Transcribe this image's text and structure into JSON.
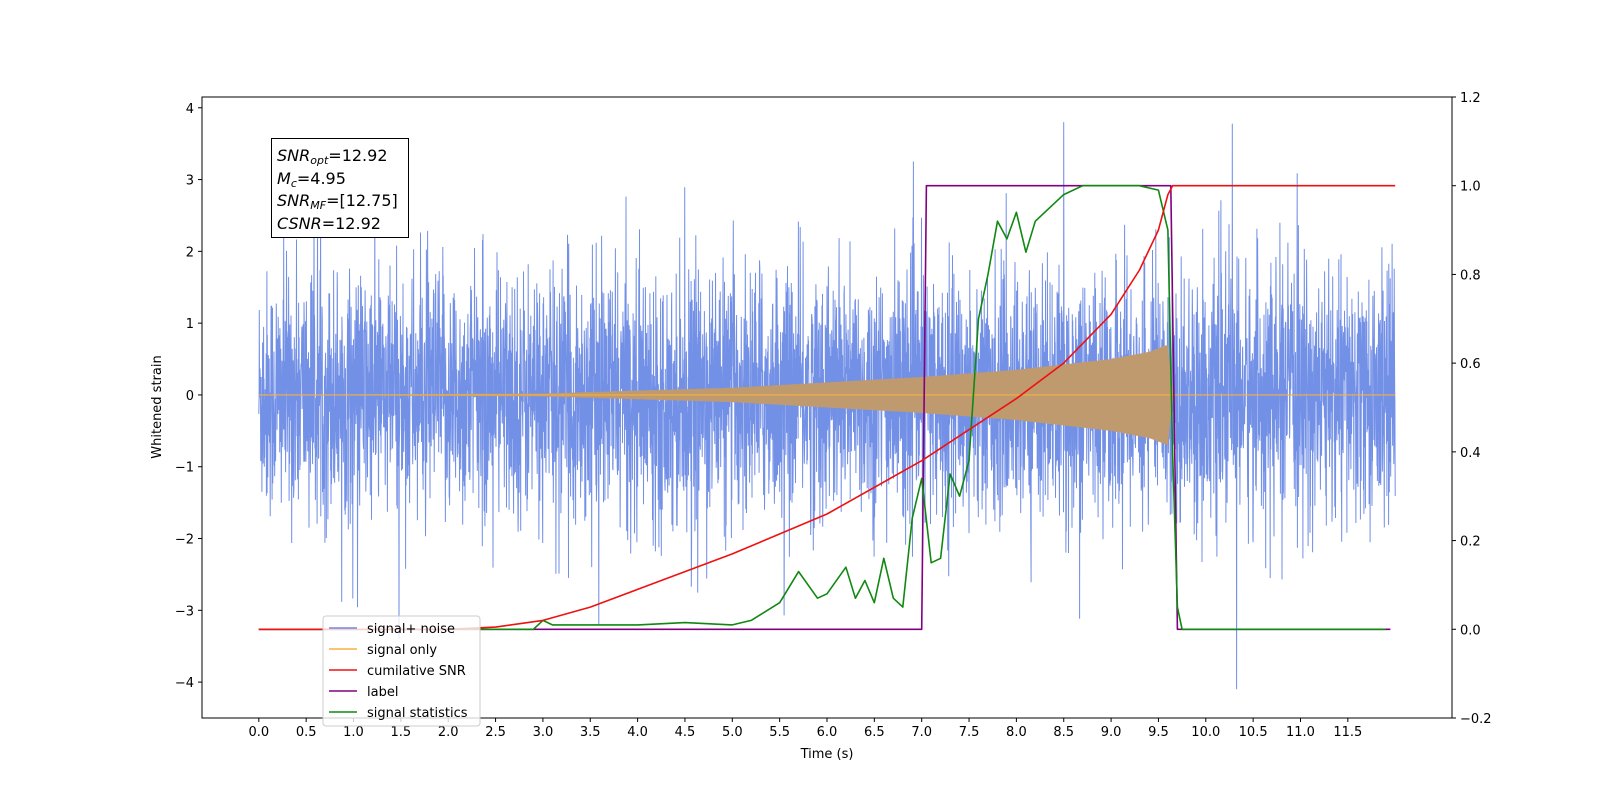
{
  "infobox": {
    "snr_opt": {
      "symbol": "SNR",
      "sub": "opt",
      "value": "=12.92"
    },
    "mc": {
      "symbol": "M",
      "sub": "c",
      "value": "=4.95"
    },
    "snr_mf": {
      "symbol": "SNR",
      "sub": "MF",
      "value": "=[12.75]"
    },
    "csnr": {
      "symbol": "CSNR",
      "value": "=12.92"
    }
  },
  "chart_data": {
    "type": "line",
    "xlabel": "Time (s)",
    "ylabel": "Whitened strain",
    "ylabel_right": "",
    "xlim": [
      -0.6,
      12.6
    ],
    "ylim_left": [
      -4.5,
      4.15
    ],
    "ylim_right": [
      -0.2,
      1.2
    ],
    "x_ticks": [
      "0.0",
      "0.5",
      "1.0",
      "1.5",
      "2.0",
      "2.5",
      "3.0",
      "3.5",
      "4.0",
      "4.5",
      "5.0",
      "5.5",
      "6.0",
      "6.5",
      "7.0",
      "7.5",
      "8.0",
      "8.5",
      "9.0",
      "9.5",
      "10.0",
      "10.5",
      "11.0",
      "11.5"
    ],
    "y_ticks_left": [
      "4",
      "3",
      "2",
      "1",
      "0",
      "−1",
      "−2",
      "−3",
      "−4"
    ],
    "y_ticks_right": [
      "1.2",
      "1.0",
      "0.8",
      "0.6",
      "0.4",
      "0.2",
      "0.0",
      "−0.2"
    ],
    "grid": false,
    "legend_position": "lower-left",
    "colors": {
      "signal_noise": "#6b8ae6",
      "signal_only": "#f5b041",
      "signal_only_fill": "#bf9a6e",
      "cumulative_snr": "#ee1111",
      "label": "#800080",
      "signal_statistics": "#118811"
    },
    "series": [
      {
        "name": "signal+ noise",
        "axis": "left",
        "description_x_range": [
          0.0,
          12.0
        ],
        "typical_envelope": [
          -1.4,
          1.9
        ],
        "peak_spikes": [
          3.8,
          -4.1
        ]
      },
      {
        "name": "signal only",
        "axis": "left",
        "x": [
          0.0,
          3.0,
          5.0,
          7.0,
          8.0,
          9.0,
          9.4,
          9.6,
          9.65,
          12.0
        ],
        "envelope": [
          0.0,
          0.02,
          0.1,
          0.25,
          0.35,
          0.5,
          0.6,
          0.7,
          0.0,
          0.0
        ]
      },
      {
        "name": "cumilative SNR",
        "axis": "right",
        "x": [
          0.0,
          2.0,
          2.5,
          3.0,
          3.5,
          4.0,
          5.0,
          6.0,
          7.0,
          7.5,
          8.0,
          8.5,
          9.0,
          9.3,
          9.5,
          9.6,
          9.65,
          12.0
        ],
        "y": [
          0.0,
          0.0,
          0.005,
          0.02,
          0.05,
          0.09,
          0.17,
          0.26,
          0.38,
          0.45,
          0.52,
          0.6,
          0.71,
          0.81,
          0.9,
          0.98,
          1.0,
          1.0
        ]
      },
      {
        "name": "label",
        "axis": "right",
        "x": [
          0.0,
          7.0,
          7.05,
          9.63,
          9.7,
          11.95
        ],
        "y": [
          0.0,
          0.0,
          1.0,
          1.0,
          0.0,
          0.0
        ]
      },
      {
        "name": "signal statistics",
        "axis": "right",
        "x": [
          0.0,
          2.9,
          3.0,
          3.1,
          3.5,
          4.0,
          4.5,
          5.0,
          5.2,
          5.5,
          5.7,
          5.9,
          6.0,
          6.2,
          6.3,
          6.4,
          6.5,
          6.6,
          6.7,
          6.8,
          6.9,
          7.0,
          7.1,
          7.2,
          7.3,
          7.4,
          7.5,
          7.6,
          7.7,
          7.8,
          7.9,
          8.0,
          8.1,
          8.2,
          8.3,
          8.5,
          8.7,
          9.0,
          9.3,
          9.5,
          9.6,
          9.65,
          9.7,
          9.75,
          11.9
        ],
        "y": [
          0.0,
          0.0,
          0.02,
          0.01,
          0.01,
          0.01,
          0.015,
          0.01,
          0.02,
          0.06,
          0.13,
          0.07,
          0.08,
          0.14,
          0.07,
          0.11,
          0.06,
          0.16,
          0.07,
          0.05,
          0.25,
          0.34,
          0.15,
          0.16,
          0.35,
          0.3,
          0.38,
          0.7,
          0.8,
          0.92,
          0.88,
          0.94,
          0.85,
          0.92,
          0.94,
          0.98,
          1.0,
          1.0,
          1.0,
          0.99,
          0.9,
          0.4,
          0.05,
          0.0,
          0.0
        ]
      }
    ]
  }
}
